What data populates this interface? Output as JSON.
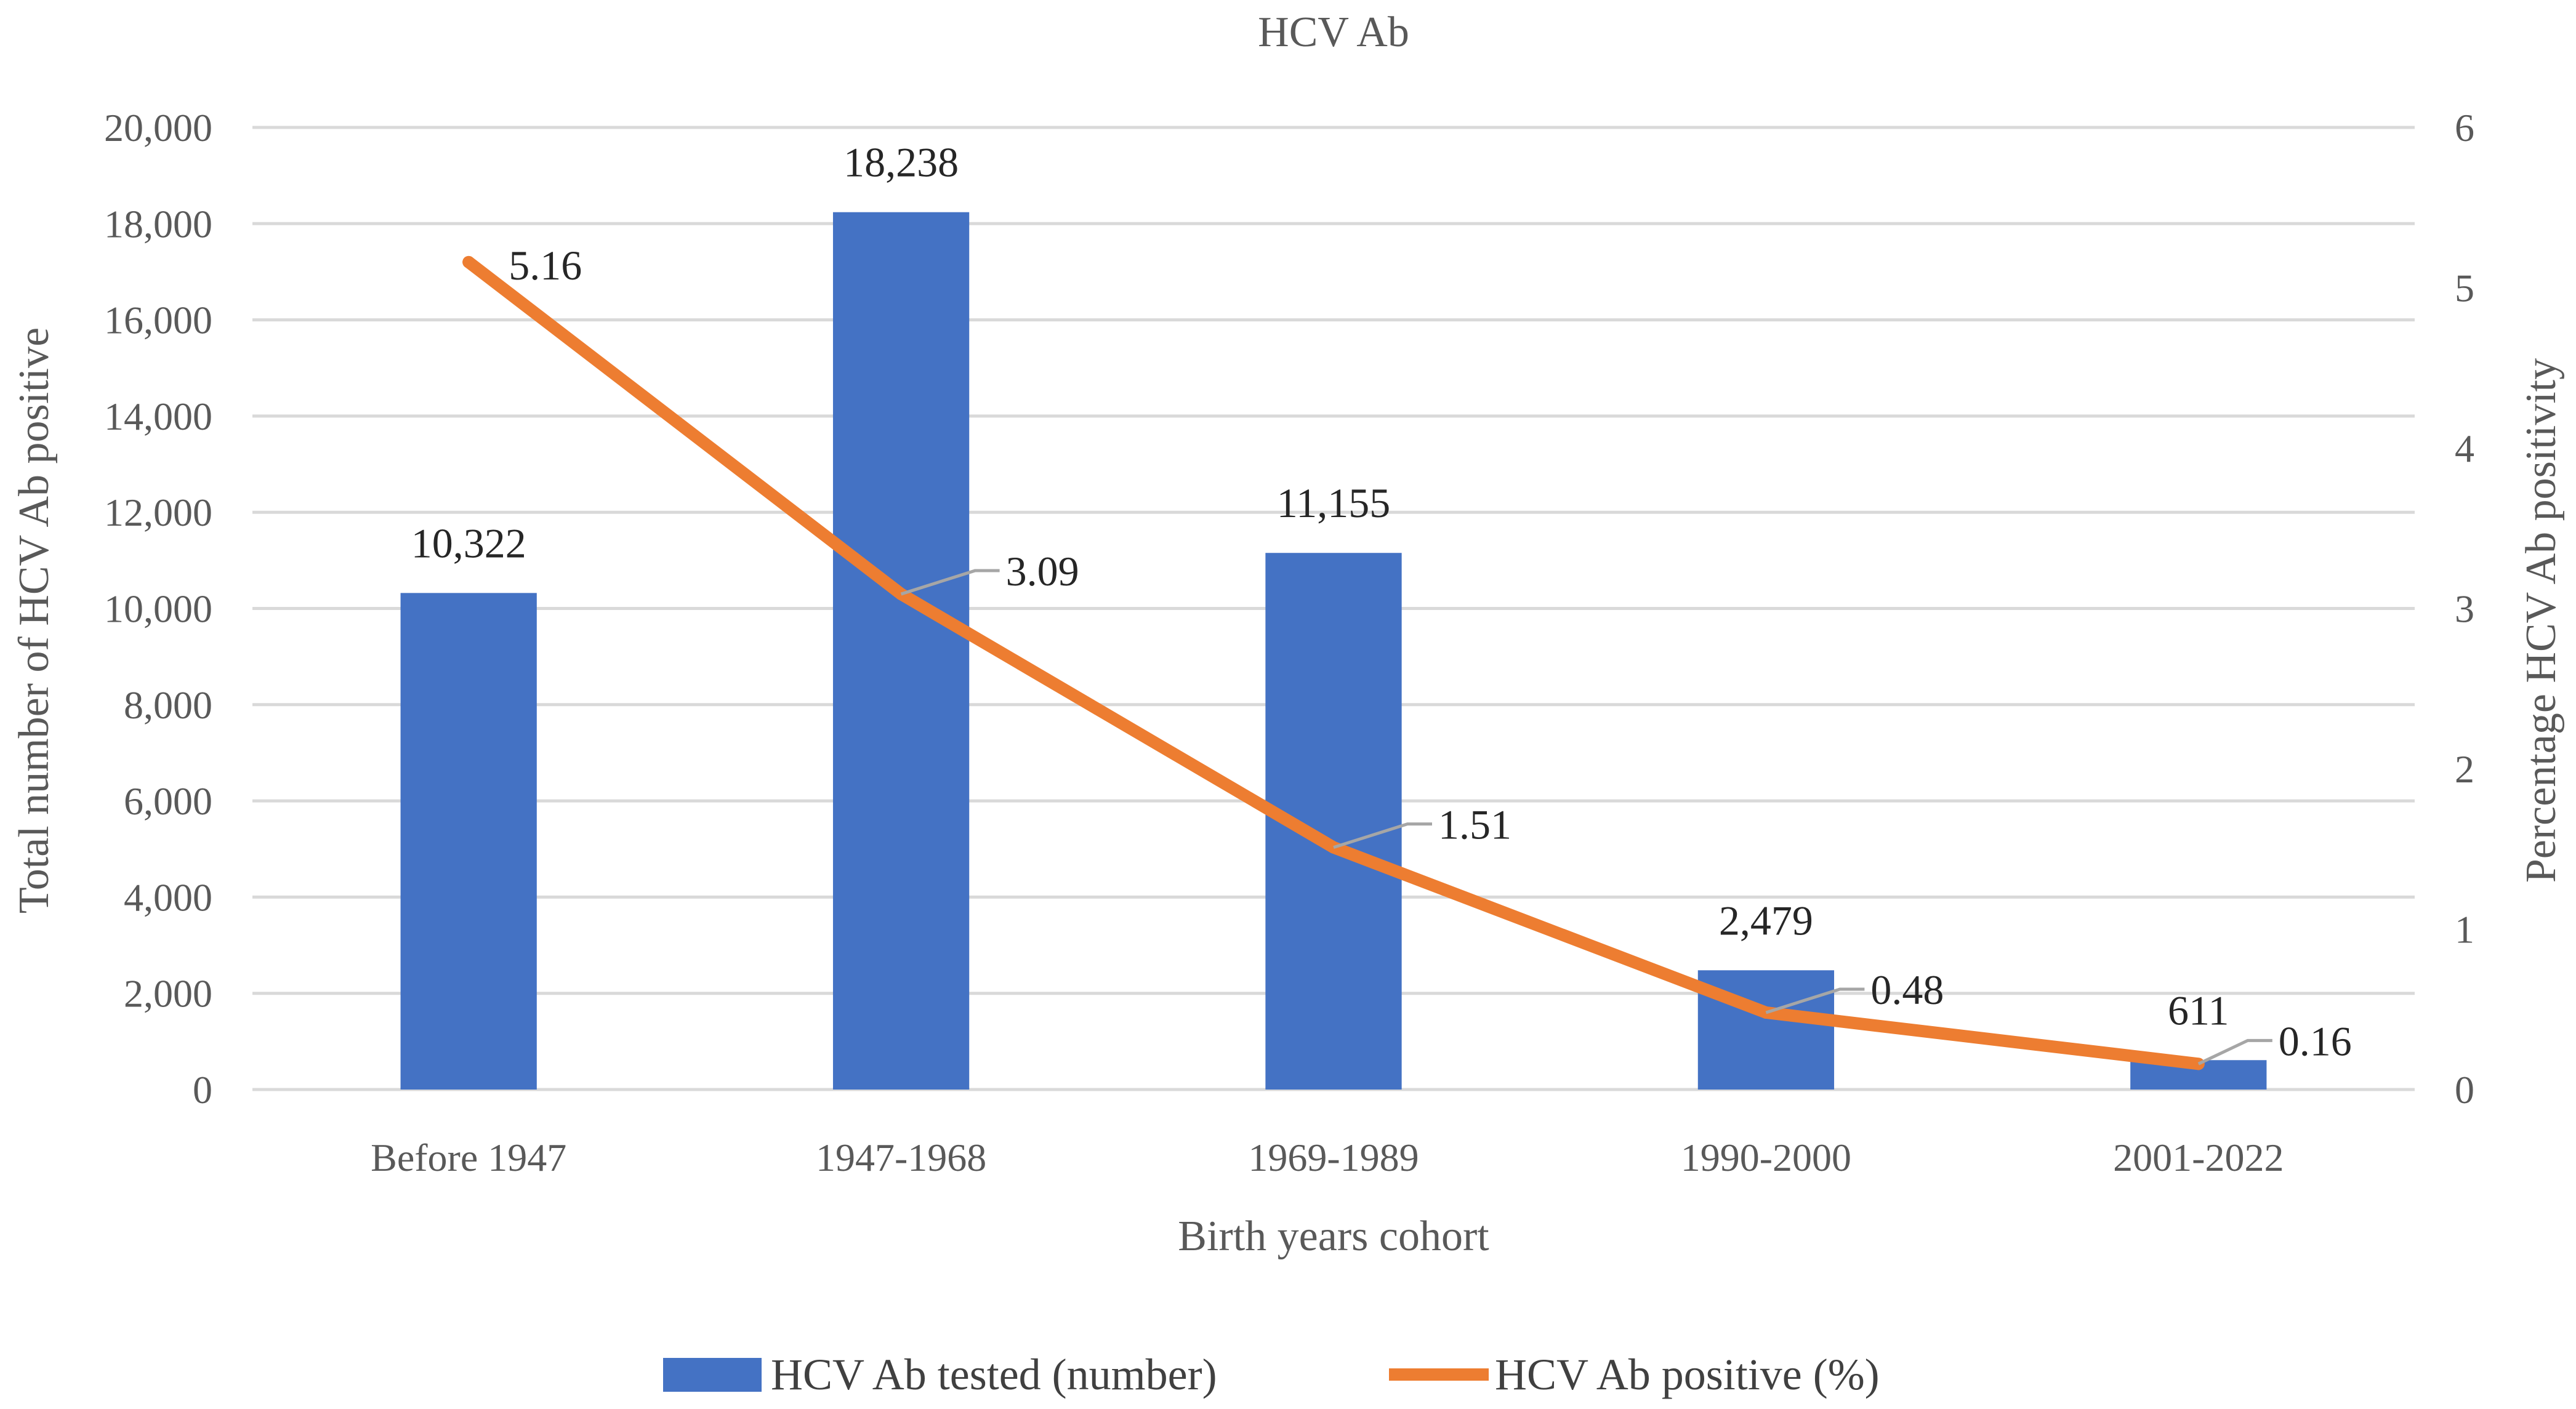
{
  "chart_data": {
    "type": "bar",
    "title": "HCV Ab",
    "xlabel": "Birth years cohort",
    "ylabel": "Total number of HCV Ab positive",
    "y2label": "Percentage HCV Ab positivity",
    "categories": [
      "Before 1947",
      "1947-1968",
      "1969-1989",
      "1990-2000",
      "2001-2022"
    ],
    "series": [
      {
        "name": "HCV Ab tested (number)",
        "type": "bar",
        "axis": "left",
        "color": "#4472c4",
        "values": [
          10322,
          18238,
          11155,
          2479,
          611
        ],
        "labels": [
          "10,322",
          "18,238",
          "11,155",
          "2,479",
          "611"
        ]
      },
      {
        "name": "HCV Ab positive (%)",
        "type": "line",
        "axis": "right",
        "color": "#ed7d31",
        "values": [
          5.16,
          3.09,
          1.51,
          0.48,
          0.16
        ],
        "labels": [
          "5.16",
          "3.09",
          "1.51",
          "0.48",
          "0.16"
        ]
      }
    ],
    "ylim": [
      0,
      20000
    ],
    "y2lim": [
      0,
      6
    ],
    "yticks": [
      "0",
      "2,000",
      "4,000",
      "6,000",
      "8,000",
      "10,000",
      "12,000",
      "14,000",
      "16,000",
      "18,000",
      "20,000"
    ],
    "y2ticks": [
      "0",
      "1",
      "2",
      "3",
      "4",
      "5",
      "6"
    ],
    "grid": true,
    "legend_position": "bottom"
  }
}
